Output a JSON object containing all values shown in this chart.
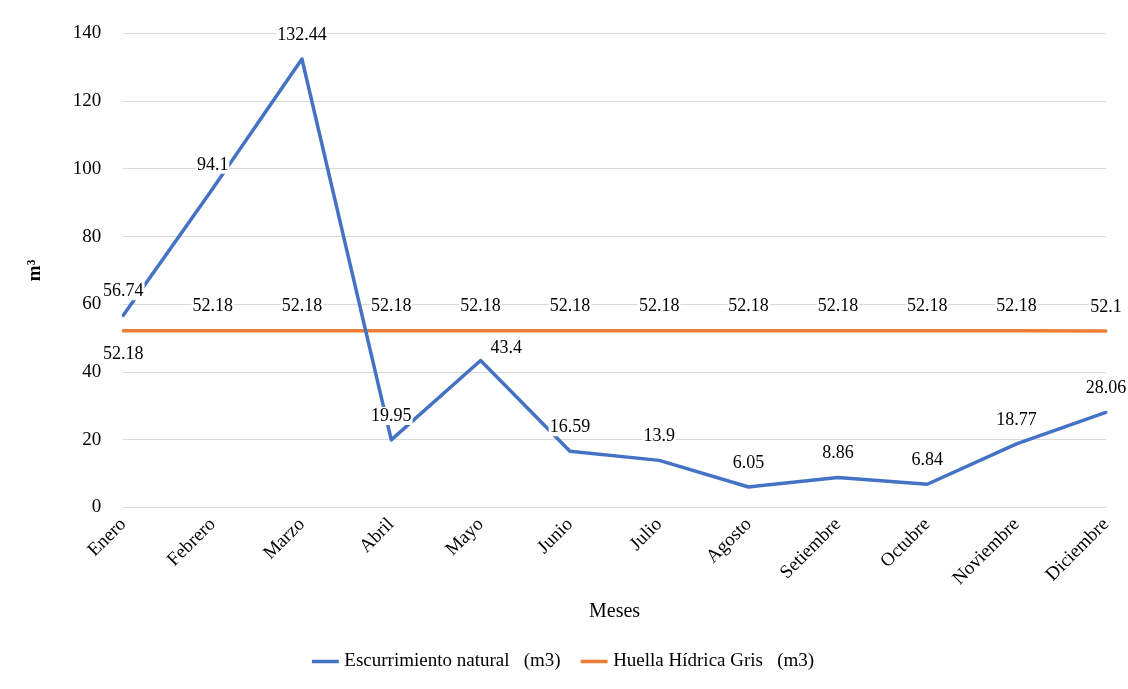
{
  "chart_data": {
    "type": "line",
    "ylabel": "m³",
    "xlabel": "Meses",
    "categories": [
      "Enero",
      "Febrero",
      "Marzo",
      "Abril",
      "Mayo",
      "Junio",
      "Julio",
      "Agosto",
      "Setiembre",
      "Octubre",
      "Noviembre",
      "Diciembre"
    ],
    "series": [
      {
        "name": "Escurrimiento natural   (m3)",
        "color": "#4472c4",
        "values": [
          56.74,
          94.1,
          132.44,
          19.95,
          43.4,
          16.59,
          13.9,
          6.05,
          8.86,
          6.84,
          18.77,
          28.06
        ],
        "value_labels": [
          "56.74",
          "94.1",
          "132.44",
          "19.95",
          "43.4",
          "16.59",
          "13.9",
          "6.05",
          "8.86",
          "6.84",
          "18.77",
          "28.06"
        ]
      },
      {
        "name": "Huella Hídrica Gris   (m3)",
        "color": "#ed7d31",
        "values": [
          52.18,
          52.18,
          52.18,
          52.18,
          52.18,
          52.18,
          52.18,
          52.18,
          52.18,
          52.18,
          52.18,
          52.1
        ],
        "value_labels": [
          "52.18",
          "52.18",
          "52.18",
          "52.18",
          "52.18",
          "52.18",
          "52.18",
          "52.18",
          "52.18",
          "52.18",
          "52.18",
          "52.1"
        ]
      }
    ],
    "ylim": [
      0,
      140
    ],
    "yticks": [
      0,
      20,
      40,
      60,
      80,
      100,
      120,
      140
    ],
    "grid": "y",
    "legend": "bottom",
    "marker": "none",
    "line_style": "solid"
  }
}
